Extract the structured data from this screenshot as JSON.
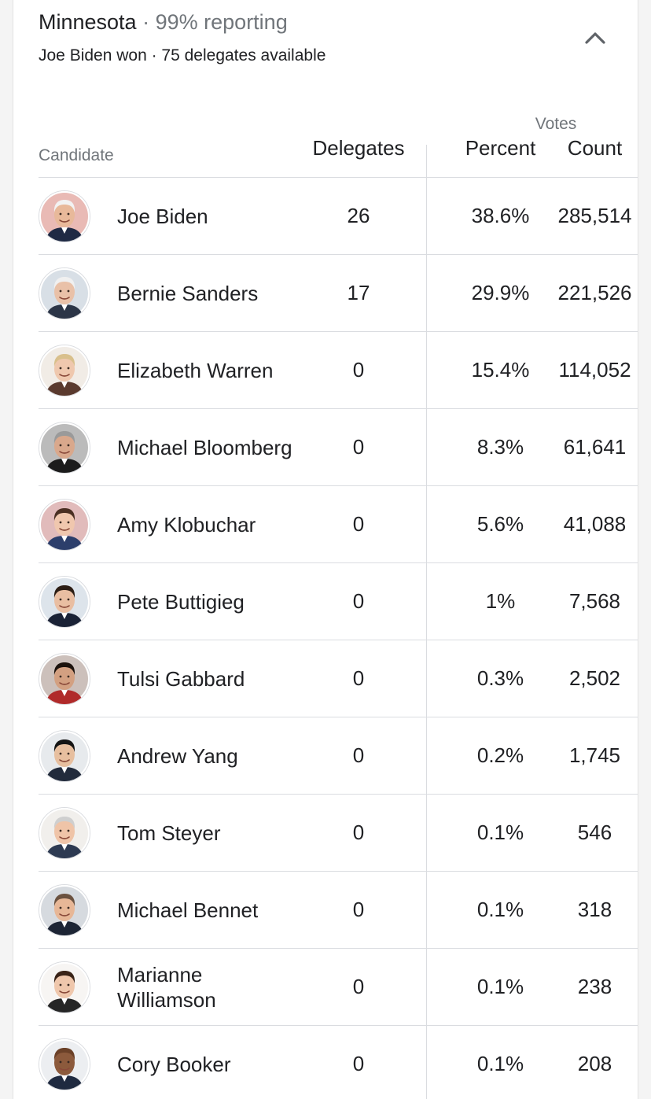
{
  "header": {
    "state": "Minnesota",
    "separator": "·",
    "reporting": "99% reporting",
    "summary": "Joe Biden won · 75 delegates available",
    "collapse_icon": "chevron-up-icon"
  },
  "table": {
    "votes_label": "Votes",
    "columns": {
      "candidate": "Candidate",
      "delegates": "Delegates",
      "percent": "Percent",
      "count": "Count"
    },
    "rows": [
      {
        "name": "Joe Biden",
        "delegates": "26",
        "percent": "38.6%",
        "count": "285,514",
        "skin": "#e8b99a",
        "hair": "#f2f2f2",
        "bg": "#c0392b",
        "suit": "#1f2a44"
      },
      {
        "name": "Bernie Sanders",
        "delegates": "17",
        "percent": "29.9%",
        "count": "221,526",
        "skin": "#e9c1a8",
        "hair": "#f0f0f0",
        "bg": "#8fa3b8",
        "suit": "#2b3547"
      },
      {
        "name": "Elizabeth Warren",
        "delegates": "0",
        "percent": "15.4%",
        "count": "114,052",
        "skin": "#efc8ae",
        "hair": "#d9c08c",
        "bg": "#d7c9b8",
        "suit": "#5a3a2e"
      },
      {
        "name": "Michael Bloomberg",
        "delegates": "0",
        "percent": "8.3%",
        "count": "61,641",
        "skin": "#d9a88c",
        "hair": "#9a9a9a",
        "bg": "#3b3b3b",
        "suit": "#1c1c1c"
      },
      {
        "name": "Amy Klobuchar",
        "delegates": "0",
        "percent": "5.6%",
        "count": "41,088",
        "skin": "#f0c7ae",
        "hair": "#4a2f22",
        "bg": "#a93d3d",
        "suit": "#2c3e6b"
      },
      {
        "name": "Pete Buttigieg",
        "delegates": "0",
        "percent": "1%",
        "count": "7,568",
        "skin": "#e9bea2",
        "hair": "#2b1d14",
        "bg": "#9fb2c6",
        "suit": "#1a2236"
      },
      {
        "name": "Tulsi Gabbard",
        "delegates": "0",
        "percent": "0.3%",
        "count": "2,502",
        "skin": "#d3a081",
        "hair": "#1c120c",
        "bg": "#6d4a3c",
        "suit": "#b02a2a"
      },
      {
        "name": "Andrew Yang",
        "delegates": "0",
        "percent": "0.2%",
        "count": "1,745",
        "skin": "#e7bf9f",
        "hair": "#141414",
        "bg": "#b9c3cc",
        "suit": "#222b3c"
      },
      {
        "name": "Tom Steyer",
        "delegates": "0",
        "percent": "0.1%",
        "count": "546",
        "skin": "#efc4a8",
        "hair": "#cfcfcf",
        "bg": "#d8d0c8",
        "suit": "#2d3a52"
      },
      {
        "name": "Michael Bennet",
        "delegates": "0",
        "percent": "0.1%",
        "count": "318",
        "skin": "#e7b797",
        "hair": "#6b5240",
        "bg": "#8a96a3",
        "suit": "#1d2535"
      },
      {
        "name": "Marianne Williamson",
        "delegates": "0",
        "percent": "0.1%",
        "count": "238",
        "skin": "#efc7ac",
        "hair": "#3a2418",
        "bg": "#e9e3dc",
        "suit": "#262626"
      },
      {
        "name": "Cory Booker",
        "delegates": "0",
        "percent": "0.1%",
        "count": "208",
        "skin": "#8c5a3c",
        "hair": "#6b4128",
        "bg": "#c9cfd6",
        "suit": "#1f2a40"
      }
    ]
  }
}
